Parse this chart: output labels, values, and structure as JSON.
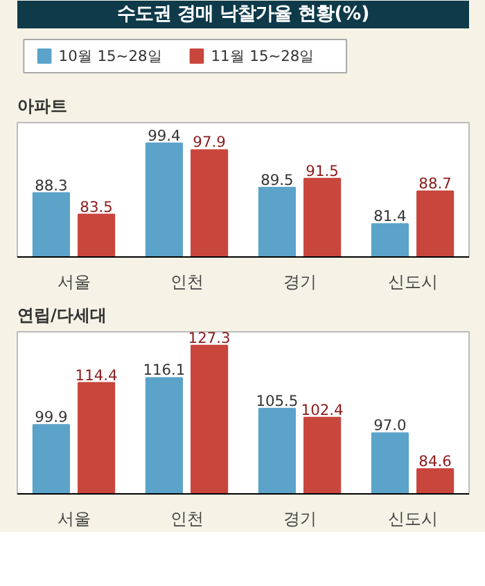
{
  "chart_data": [
    {
      "type": "bar",
      "title": "수도권 경매 낙찰가율 현황(%)",
      "subtitle": "아파트",
      "categories": [
        "서울",
        "인천",
        "경기",
        "신도시"
      ],
      "series": [
        {
          "name": "10월 15~28일",
          "color": "#5ba3c9",
          "values": [
            88.3,
            99.4,
            89.5,
            81.4
          ],
          "value_labels": [
            "88.3",
            "99.4",
            "89.5",
            "81.4"
          ]
        },
        {
          "name": "11월 15~28일",
          "color": "#c9463d",
          "values": [
            83.5,
            97.9,
            91.5,
            88.7
          ],
          "value_labels": [
            "83.5",
            "97.9",
            "91.5",
            "88.7"
          ]
        }
      ],
      "ylim": [
        74,
        104
      ],
      "tick_labels": "x",
      "legend": "top"
    },
    {
      "type": "bar",
      "title": "연립/다세대",
      "categories": [
        "서울",
        "인천",
        "경기",
        "신도시"
      ],
      "series": [
        {
          "color": "#5ba3c9",
          "values": [
            99.9,
            116.1,
            105.5,
            97.0
          ],
          "value_labels": [
            "99.9",
            "116.1",
            "105.5",
            "97.0"
          ]
        },
        {
          "color": "#c9463d",
          "values": [
            114.4,
            127.3,
            102.4,
            84.6
          ],
          "value_labels": [
            "114.4",
            "127.3",
            "102.4",
            "84.6"
          ]
        }
      ],
      "ylim": [
        76,
        132
      ],
      "tick_labels": "x"
    }
  ]
}
